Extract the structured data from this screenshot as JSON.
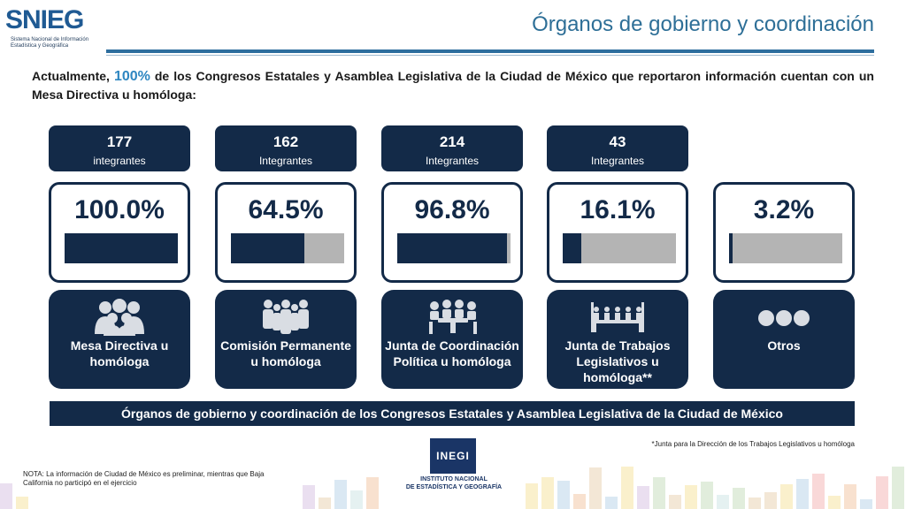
{
  "header": {
    "logo_word": "SNIEG",
    "logo_subtitle": "Sistema Nacional de Información Estadística y Geográfica",
    "title": "Órganos de gobierno y coordinación"
  },
  "intro": {
    "before": "Actualmente, ",
    "highlight": "100%",
    "after": " de los Congresos Estatales y Asamblea Legislativa de la Ciudad de México que reportaron información cuentan con un Mesa Directiva u homóloga:"
  },
  "accent_colors": {
    "navy": "#132a48",
    "bar_gray": "#b4b4b4",
    "title_blue": "#2e6f97",
    "highlight": "#2e86c1"
  },
  "organs": [
    {
      "count": "177",
      "count_label": "integrantes",
      "percent_text": "100.0%",
      "percent": 100.0,
      "label": "Mesa Directiva u homóloga",
      "icon": "group-people-icon"
    },
    {
      "count": "162",
      "count_label": "Integrantes",
      "percent_text": "64.5%",
      "percent": 64.5,
      "label": "Comisión Permanente u homóloga",
      "icon": "standing-people-icon"
    },
    {
      "count": "214",
      "count_label": "Integrantes",
      "percent_text": "96.8%",
      "percent": 96.8,
      "label": "Junta de Coordinación Política u homóloga",
      "icon": "meeting-table-icon"
    },
    {
      "count": "43",
      "count_label": "Integrantes",
      "percent_text": "16.1%",
      "percent": 16.1,
      "label": "Junta de Trabajos Legislativos u homóloga**",
      "icon": "assembly-icon"
    },
    {
      "percent_text": "3.2%",
      "percent": 3.2,
      "label": "Otros",
      "icon": "three-dots-icon"
    }
  ],
  "banner": "Órganos de gobierno y coordinación de los Congresos Estatales y Asamblea Legislativa de la Ciudad de México",
  "footnote": "*Junta para la Dirección de los Trabajos Legislativos u homóloga",
  "nota": "NOTA: La información de Ciudad de México es preliminar, mientras que Baja California no participó en el ejercicio",
  "inegi": {
    "mark": "INEGI",
    "line1": "INSTITUTO NACIONAL",
    "line2": "DE ESTADÍSTICA Y GEOGRAFÍA"
  }
}
